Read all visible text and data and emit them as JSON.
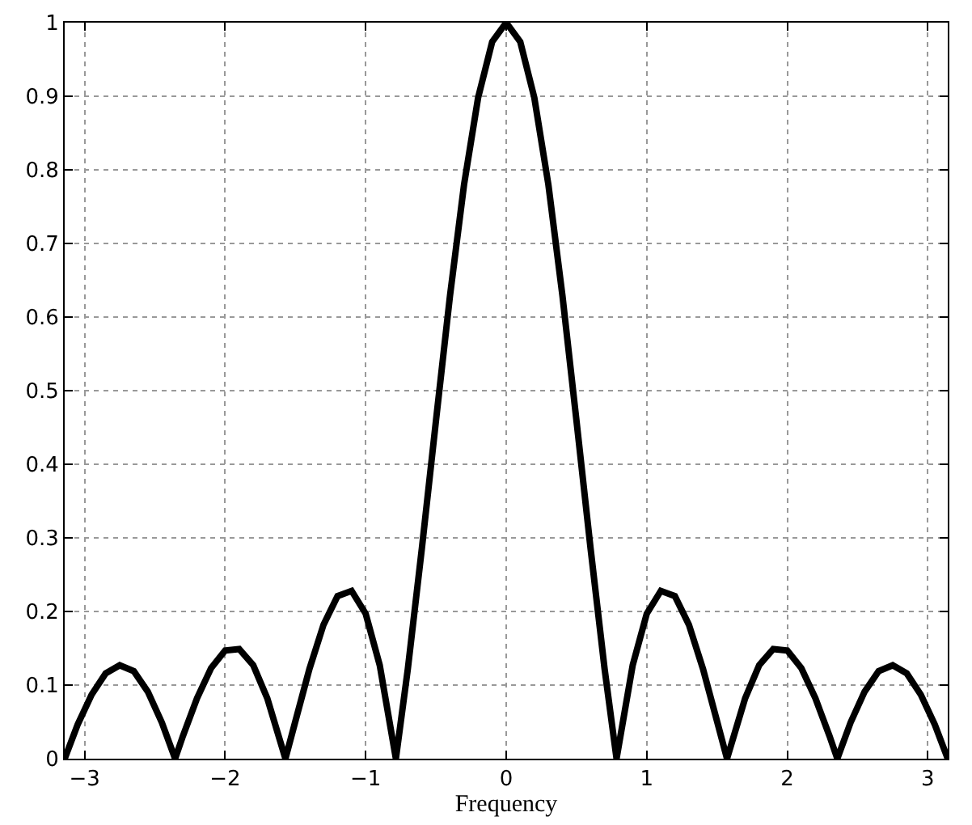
{
  "chart_data": {
    "type": "line",
    "xlabel": "Frequency",
    "x": [
      -3.1416,
      -3.05,
      -2.95,
      -2.85,
      -2.75,
      -2.65,
      -2.55,
      -2.45,
      -2.356,
      -2.3,
      -2.2,
      -2.1,
      -2.0,
      -1.9,
      -1.8,
      -1.7,
      -1.571,
      -1.5,
      -1.4,
      -1.3,
      -1.2,
      -1.1,
      -1.0,
      -0.9,
      -0.785,
      -0.7,
      -0.6,
      -0.5,
      -0.4,
      -0.3,
      -0.2,
      -0.1,
      0,
      0.1,
      0.2,
      0.3,
      0.4,
      0.5,
      0.6,
      0.7,
      0.785,
      0.9,
      1.0,
      1.1,
      1.2,
      1.3,
      1.4,
      1.5,
      1.571,
      1.7,
      1.8,
      1.9,
      2.0,
      2.1,
      2.2,
      2.3,
      2.356,
      2.45,
      2.55,
      2.65,
      2.75,
      2.85,
      2.95,
      3.05,
      3.1416
    ],
    "series": [
      {
        "color": "#000000",
        "values": [
          0,
          0.046,
          0.087,
          0.116,
          0.127,
          0.119,
          0.091,
          0.049,
          0,
          0.031,
          0.082,
          0.123,
          0.147,
          0.149,
          0.127,
          0.082,
          0,
          0.051,
          0.122,
          0.182,
          0.221,
          0.228,
          0.197,
          0.127,
          0,
          0.122,
          0.286,
          0.459,
          0.629,
          0.78,
          0.898,
          0.974,
          1,
          0.974,
          0.898,
          0.78,
          0.629,
          0.459,
          0.286,
          0.122,
          0,
          0.127,
          0.197,
          0.228,
          0.221,
          0.182,
          0.122,
          0.051,
          0,
          0.082,
          0.127,
          0.149,
          0.147,
          0.123,
          0.082,
          0.031,
          0,
          0.049,
          0.091,
          0.119,
          0.127,
          0.116,
          0.087,
          0.046,
          0
        ]
      }
    ],
    "xlim": [
      -3.1416,
      3.1416
    ],
    "xticks": [
      {
        "value": -3,
        "label": "−3"
      },
      {
        "value": -2,
        "label": "−2"
      },
      {
        "value": -1,
        "label": "−1"
      },
      0,
      1,
      2,
      3
    ],
    "ylim": [
      0,
      1
    ],
    "yticks": [
      0,
      0.1,
      0.2,
      0.3,
      0.4,
      0.5,
      0.6,
      0.7,
      0.8,
      0.9,
      1
    ],
    "grid": true,
    "marker": "none",
    "line_style": "solid"
  }
}
